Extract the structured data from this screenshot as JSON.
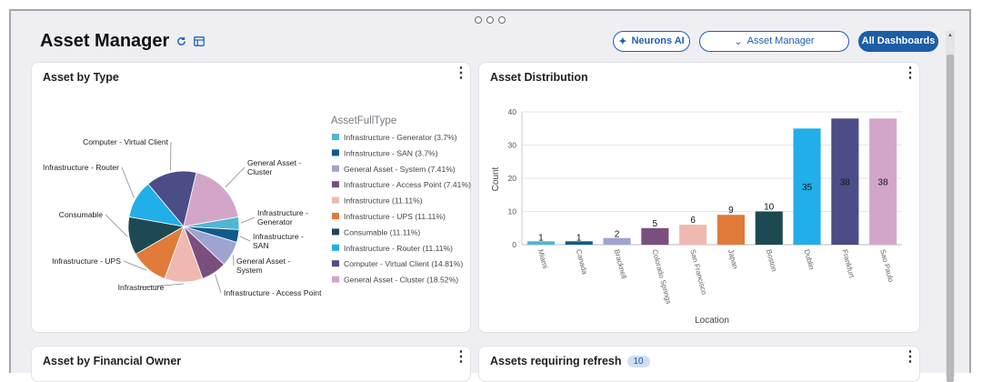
{
  "header": {
    "title": "Asset Manager",
    "neurons_label": "Neurons AI",
    "dashboard_select": "Asset Manager",
    "all_dashboards_label": "All Dashboards"
  },
  "cards": {
    "asset_by_type": {
      "title": "Asset by Type"
    },
    "asset_distribution": {
      "title": "Asset Distribution"
    },
    "asset_by_financial_owner": {
      "title": "Asset by Financial Owner"
    },
    "assets_requiring_refresh": {
      "title": "Assets requiring refresh",
      "badge": "10"
    }
  },
  "colors": {
    "accent": "#1b5da7",
    "generator": "#4fb7d3",
    "san": "#0f5b8c",
    "system": "#9fa3cf",
    "access_point": "#7a4f7f",
    "infrastructure": "#efb9b2",
    "ups": "#e07b39",
    "consumable": "#1d4a52",
    "router": "#22aee8",
    "virtual_client": "#4b4d86",
    "cluster": "#d3a6c9"
  },
  "chart_data": [
    {
      "type": "pie",
      "title": "Asset by Type",
      "legend_title": "AssetFullType",
      "legend_position": "right",
      "slices": [
        {
          "name": "Infrastructure - Generator",
          "percent": 3.7,
          "legend": "Infrastructure - Generator (3.7%)",
          "label": "Infrastructure -\nGenerator",
          "color": "#4fb7d3"
        },
        {
          "name": "Infrastructure - SAN",
          "percent": 3.7,
          "legend": "Infrastructure - SAN (3.7%)",
          "label": "Infrastructure -\nSAN",
          "color": "#0f5b8c"
        },
        {
          "name": "General Asset - System",
          "percent": 7.41,
          "legend": "General Asset - System (7.41%)",
          "label": "General Asset -\nSystem",
          "color": "#9fa3cf"
        },
        {
          "name": "Infrastructure - Access Point",
          "percent": 7.41,
          "legend": "Infrastructure - Access Point (7.41%)",
          "label": "Infrastructure - Access Point",
          "color": "#7a4f7f"
        },
        {
          "name": "Infrastructure",
          "percent": 11.11,
          "legend": "Infrastructure (11.11%)",
          "label": "Infrastructure",
          "color": "#efb9b2"
        },
        {
          "name": "Infrastructure - UPS",
          "percent": 11.11,
          "legend": "Infrastructure - UPS (11.11%)",
          "label": "Infrastructure - UPS",
          "color": "#e07b39"
        },
        {
          "name": "Consumable",
          "percent": 11.11,
          "legend": "Consumable (11.11%)",
          "label": "Consumable",
          "color": "#1d4a52"
        },
        {
          "name": "Infrastructure - Router",
          "percent": 11.11,
          "legend": "Infrastructure - Router (11.11%)",
          "label": "Infrastructure - Router",
          "color": "#22aee8"
        },
        {
          "name": "Computer - Virtual Client",
          "percent": 14.81,
          "legend": "Computer - Virtual Client (14.81%)",
          "label": "Computer - Virtual Client",
          "color": "#4b4d86"
        },
        {
          "name": "General Asset - Cluster",
          "percent": 18.52,
          "legend": "General Asset - Cluster (18.52%)",
          "label": "General Asset -\nCluster",
          "color": "#d3a6c9"
        }
      ]
    },
    {
      "type": "bar",
      "title": "Asset Distribution",
      "xlabel": "Location",
      "ylabel": "Count",
      "ylim": [
        0,
        40
      ],
      "yticks": [
        0,
        10,
        20,
        30,
        40
      ],
      "grid": true,
      "categories": [
        "Miami",
        "Canada",
        "Bracknell",
        "Colorado Springs",
        "San Francisco",
        "Japan",
        "Boston",
        "Dublin",
        "Frankfurt",
        "Sao Paulo"
      ],
      "values": [
        1,
        1,
        2,
        5,
        6,
        9,
        10,
        35,
        38,
        38
      ],
      "colors": [
        "#4fb7d3",
        "#0f5b8c",
        "#9fa3cf",
        "#7a4f7f",
        "#efb9b2",
        "#e07b39",
        "#1d4a52",
        "#22aee8",
        "#4b4d86",
        "#d3a6c9"
      ]
    }
  ]
}
